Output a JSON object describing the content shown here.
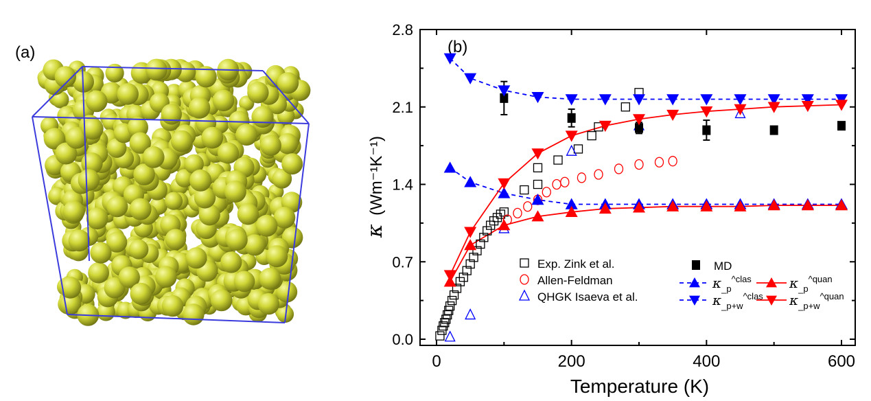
{
  "panel_a": {
    "label": "(a)"
  },
  "chart_data": {
    "type": "scatter",
    "panel_label": "(b)",
    "xlabel": "Temperature (K)",
    "ylabel_symbol": "κ",
    "ylabel_units": "(Wm⁻¹K⁻¹)",
    "xlim": [
      -25,
      625
    ],
    "ylim": [
      0,
      2.8
    ],
    "xticks": [
      0,
      200,
      400,
      600
    ],
    "yticks": [
      0.0,
      0.7,
      1.4,
      2.1,
      2.8
    ],
    "ytick_labels": [
      "0.0",
      "0.7",
      "1.4",
      "2.1",
      "2.8"
    ],
    "grid": false,
    "series": [
      {
        "name": "MD",
        "marker": "filled-square",
        "color": "#000000",
        "line": "none",
        "x": [
          100,
          200,
          300,
          400,
          500,
          600
        ],
        "y": [
          2.18,
          2.0,
          1.91,
          1.89,
          1.89,
          1.93
        ],
        "err": [
          0.15,
          0.08,
          0.05,
          0.09,
          0.02,
          0.02
        ]
      },
      {
        "name": "κ_p^clas",
        "sym": "κ",
        "sub": "p",
        "sup": "clas",
        "marker": "filled-up-triangle",
        "color": "#0000ff",
        "line": "dashed",
        "x": [
          20,
          50,
          100,
          150,
          200,
          250,
          300,
          350,
          400,
          450,
          500,
          550,
          600
        ],
        "y": [
          1.55,
          1.42,
          1.32,
          1.26,
          1.22,
          1.22,
          1.22,
          1.22,
          1.22,
          1.22,
          1.22,
          1.22,
          1.22
        ]
      },
      {
        "name": "κ_p^quan",
        "sym": "κ",
        "sub": "p",
        "sup": "quan",
        "marker": "filled-up-triangle",
        "color": "#ff0000",
        "line": "solid",
        "x": [
          20,
          50,
          100,
          150,
          200,
          250,
          300,
          350,
          400,
          450,
          500,
          550,
          600
        ],
        "y": [
          0.52,
          0.85,
          1.03,
          1.11,
          1.15,
          1.18,
          1.19,
          1.2,
          1.2,
          1.2,
          1.21,
          1.21,
          1.21
        ]
      },
      {
        "name": "κ_p+w^clas",
        "sym": "κ",
        "sub": "p+w",
        "sup": "clas",
        "marker": "filled-down-triangle",
        "color": "#0000ff",
        "line": "dashed",
        "x": [
          20,
          50,
          100,
          150,
          200,
          250,
          300,
          350,
          400,
          450,
          500,
          550,
          600
        ],
        "y": [
          2.54,
          2.36,
          2.25,
          2.19,
          2.17,
          2.17,
          2.17,
          2.17,
          2.17,
          2.17,
          2.17,
          2.17,
          2.17
        ]
      },
      {
        "name": "κ_p+w^quan",
        "sym": "κ",
        "sub": "p+w",
        "sup": "quan",
        "marker": "filled-down-triangle",
        "color": "#ff0000",
        "line": "solid",
        "x": [
          20,
          50,
          100,
          150,
          200,
          250,
          300,
          350,
          400,
          450,
          500,
          550,
          600
        ],
        "y": [
          0.58,
          0.97,
          1.41,
          1.68,
          1.84,
          1.93,
          1.99,
          2.03,
          2.06,
          2.08,
          2.1,
          2.11,
          2.12
        ]
      },
      {
        "name": "Exp. Zink et al.",
        "marker": "open-square",
        "color": "#000000",
        "line": "none",
        "x": [
          5,
          8,
          10,
          12,
          14,
          16,
          18,
          20,
          23,
          26,
          30,
          35,
          40,
          45,
          50,
          55,
          60,
          65,
          70,
          75,
          80,
          85,
          90,
          95,
          100,
          130,
          150,
          150,
          180,
          210,
          230,
          240,
          280,
          300
        ],
        "y": [
          0.03,
          0.08,
          0.12,
          0.15,
          0.18,
          0.22,
          0.26,
          0.3,
          0.35,
          0.4,
          0.46,
          0.52,
          0.56,
          0.62,
          0.68,
          0.74,
          0.8,
          0.86,
          0.92,
          0.98,
          1.03,
          1.07,
          1.1,
          1.13,
          1.15,
          1.35,
          1.4,
          1.55,
          1.62,
          1.72,
          1.84,
          1.92,
          2.1,
          2.23
        ]
      },
      {
        "name": "Allen-Feldman",
        "marker": "open-circle",
        "color": "#ff0000",
        "line": "none",
        "x": [
          105,
          120,
          135,
          150,
          163,
          178,
          190,
          215,
          240,
          270,
          300,
          330,
          350
        ],
        "y": [
          1.08,
          1.14,
          1.2,
          1.26,
          1.33,
          1.4,
          1.42,
          1.46,
          1.49,
          1.54,
          1.58,
          1.6,
          1.61
        ]
      },
      {
        "name": "QHGK Isaeva et al.",
        "marker": "open-up-triangle",
        "color": "#0000ff",
        "line": "none",
        "x": [
          20,
          50,
          100,
          200,
          300,
          450
        ],
        "y": [
          0.02,
          0.22,
          1.0,
          1.7,
          1.93,
          2.04
        ]
      }
    ],
    "legend": {
      "placement": "bottom-center",
      "left_entries": [
        "Exp. Zink et al.",
        "Allen-Feldman",
        "QHGK Isaeva et al."
      ],
      "right_entries": [
        "MD",
        "κ_p^clas",
        "κ_p^quan",
        "κ_p+w^clas",
        "κ_p+w^quan"
      ]
    },
    "colors": {
      "blue": "#0000ff",
      "red": "#ff0000",
      "black": "#000000",
      "sphere": "#c8d22a",
      "box": "#3b3bdd"
    }
  }
}
